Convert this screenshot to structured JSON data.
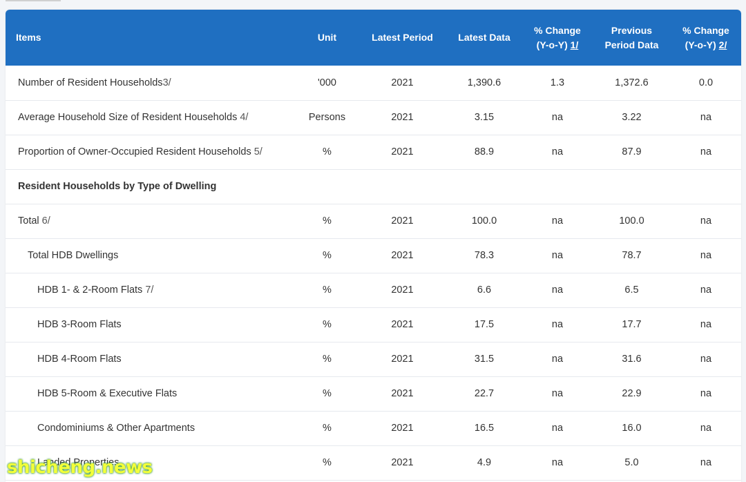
{
  "table": {
    "headers": {
      "items": "Items",
      "unit": "Unit",
      "latest_period": "Latest Period",
      "latest_data": "Latest Data",
      "pct_change_1_line1": "% Change",
      "pct_change_1_line2": "(Y-o-Y)",
      "pct_change_1_note": "1/",
      "previous_line1": "Previous",
      "previous_line2": "Period Data",
      "pct_change_2_line1": "% Change",
      "pct_change_2_line2": "(Y-o-Y)",
      "pct_change_2_note": "2/"
    },
    "rows": [
      {
        "label": "Number of Resident Households",
        "note": "3/",
        "unit": "'000",
        "period": "2021",
        "latest": "1,390.6",
        "chg1": "1.3",
        "prev": "1,372.6",
        "chg2": "0.0"
      },
      {
        "label": "Average Household Size of Resident Households ",
        "note": "4/",
        "unit": "Persons",
        "period": "2021",
        "latest": "3.15",
        "chg1": "na",
        "prev": "3.22",
        "chg2": "na"
      },
      {
        "label": "Proportion of Owner-Occupied Resident Households ",
        "note": "5/",
        "unit": "%",
        "period": "2021",
        "latest": "88.9",
        "chg1": "na",
        "prev": "87.9",
        "chg2": "na"
      },
      {
        "label": "Resident Households by Type of Dwelling"
      },
      {
        "label": "Total ",
        "note": "6/",
        "unit": "%",
        "period": "2021",
        "latest": "100.0",
        "chg1": "na",
        "prev": "100.0",
        "chg2": "na"
      },
      {
        "label": "Total HDB Dwellings",
        "unit": "%",
        "period": "2021",
        "latest": "78.3",
        "chg1": "na",
        "prev": "78.7",
        "chg2": "na"
      },
      {
        "label": "HDB 1- & 2-Room Flats ",
        "note": "7/",
        "unit": "%",
        "period": "2021",
        "latest": "6.6",
        "chg1": "na",
        "prev": "6.5",
        "chg2": "na"
      },
      {
        "label": "HDB 3-Room Flats",
        "unit": "%",
        "period": "2021",
        "latest": "17.5",
        "chg1": "na",
        "prev": "17.7",
        "chg2": "na"
      },
      {
        "label": "HDB 4-Room Flats",
        "unit": "%",
        "period": "2021",
        "latest": "31.5",
        "chg1": "na",
        "prev": "31.6",
        "chg2": "na"
      },
      {
        "label": "HDB 5-Room & Executive Flats",
        "unit": "%",
        "period": "2021",
        "latest": "22.7",
        "chg1": "na",
        "prev": "22.9",
        "chg2": "na"
      },
      {
        "label": "Condominiums & Other Apartments",
        "unit": "%",
        "period": "2021",
        "latest": "16.5",
        "chg1": "na",
        "prev": "16.0",
        "chg2": "na"
      },
      {
        "label": "Landed Properties",
        "unit": "%",
        "period": "2021",
        "latest": "4.9",
        "chg1": "na",
        "prev": "5.0",
        "chg2": "na"
      }
    ]
  },
  "watermark": "shicheng.news",
  "colors": {
    "header_bg": "#1f6fc1",
    "header_text": "#ffffff",
    "row_border": "#e6e9ee"
  }
}
